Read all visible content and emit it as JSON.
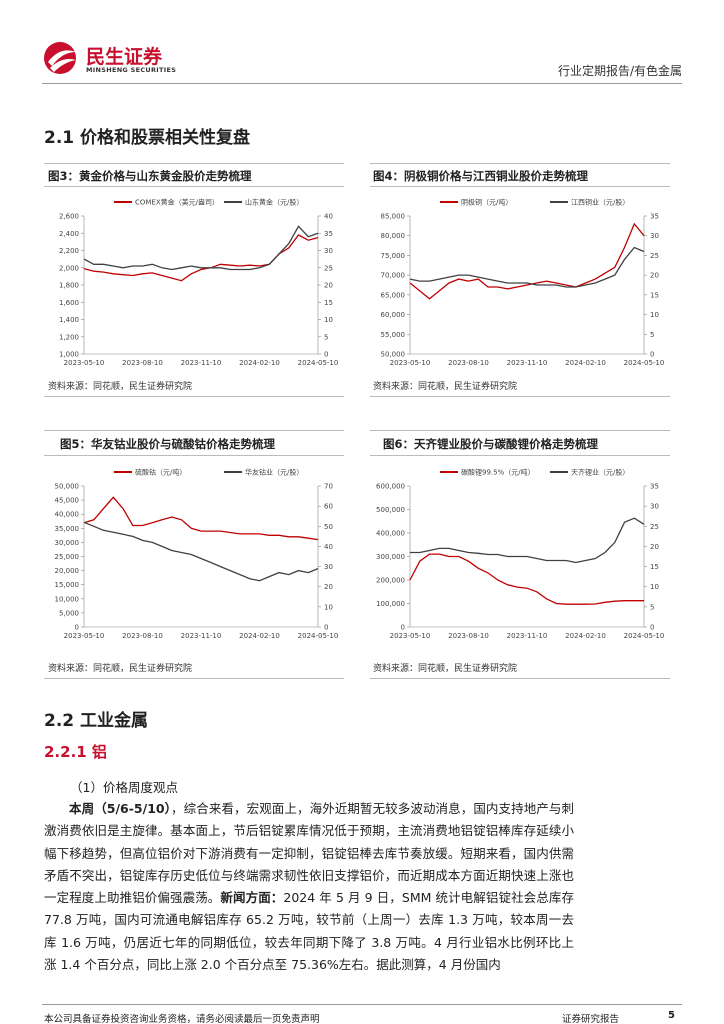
{
  "header": {
    "brand": "民生证券",
    "brand_en": "MINSHENG SECURITIES",
    "category": "行业定期报告/有色金属"
  },
  "section_2_1": "2.1 价格和股票相关性复盘",
  "chart_data": [
    {
      "type": "line",
      "title": "图3：黄金价格与山东黄金股价走势梳理",
      "source": "资料来源：同花顺，民生证券研究院",
      "categories": [
        "2023-05-10",
        null,
        null,
        null,
        null,
        null,
        "2023-08-10",
        null,
        null,
        null,
        null,
        null,
        "2023-11-10",
        null,
        null,
        null,
        null,
        null,
        "2024-02-10",
        null,
        null,
        null,
        null,
        null,
        "2024-05-10"
      ],
      "ylim": [
        1000,
        2600
      ],
      "yticks": [
        {
          "value": 1000,
          "label": "1,000"
        },
        {
          "value": 1200,
          "label": "1,200"
        },
        {
          "value": 1400,
          "label": "1,400"
        },
        {
          "value": 1600,
          "label": "1,600"
        },
        {
          "value": 1800,
          "label": "1,800"
        },
        {
          "value": 2000,
          "label": "2,000"
        },
        {
          "value": 2200,
          "label": "2,200"
        },
        {
          "value": 2400,
          "label": "2,400"
        },
        {
          "value": 2600,
          "label": "2,600"
        }
      ],
      "y2lim": [
        0,
        40
      ],
      "y2ticks": [
        0,
        5,
        10,
        15,
        20,
        25,
        30,
        35,
        40
      ],
      "series": [
        {
          "name": "COMEX黄金（美元/盎司）",
          "color": "#c00000",
          "values": [
            1990,
            1960,
            1950,
            1930,
            1920,
            1910,
            1930,
            1940,
            1910,
            1880,
            1850,
            1930,
            1980,
            2000,
            2040,
            2030,
            2020,
            2030,
            2020,
            2040,
            2160,
            2230,
            2380,
            2320,
            2350
          ]
        },
        {
          "name": "山东黄金（元/股）",
          "color": "#404040",
          "axis": "y2",
          "values": [
            27.5,
            26,
            26,
            25.5,
            25,
            25.5,
            25.5,
            26,
            25,
            24.5,
            25,
            25.5,
            25,
            25,
            25,
            24.5,
            24.5,
            24.5,
            25,
            26,
            29,
            32,
            37,
            34,
            35
          ]
        }
      ]
    },
    {
      "type": "line",
      "title": "图4：阴极铜价格与江西铜业股价走势梳理",
      "source": "资料来源：同花顺，民生证券研究院",
      "categories": [
        "2023-05-10",
        null,
        null,
        null,
        null,
        null,
        "2023-08-10",
        null,
        null,
        null,
        null,
        null,
        "2023-11-10",
        null,
        null,
        null,
        null,
        null,
        "2024-02-10",
        null,
        null,
        null,
        null,
        null,
        "2024-05-10"
      ],
      "ylim": [
        50000,
        85000
      ],
      "yticks": [
        {
          "value": 50000,
          "label": "50,000"
        },
        {
          "value": 55000,
          "label": "55,000"
        },
        {
          "value": 60000,
          "label": "60,000"
        },
        {
          "value": 65000,
          "label": "65,000"
        },
        {
          "value": 70000,
          "label": "70,000"
        },
        {
          "value": 75000,
          "label": "75,000"
        },
        {
          "value": 80000,
          "label": "80,000"
        },
        {
          "value": 85000,
          "label": "85,000"
        }
      ],
      "y2lim": [
        0,
        35
      ],
      "y2ticks": [
        0,
        5,
        10,
        15,
        20,
        25,
        30,
        35
      ],
      "series": [
        {
          "name": "阴极铜（元/吨）",
          "color": "#c00000",
          "values": [
            68000,
            66000,
            64000,
            66000,
            68000,
            69000,
            68500,
            69000,
            67000,
            67000,
            66500,
            67000,
            67500,
            68000,
            68500,
            68000,
            67500,
            67000,
            68000,
            69000,
            70500,
            72000,
            77000,
            83000,
            80000
          ]
        },
        {
          "name": "江西铜业（元/股）",
          "color": "#404040",
          "axis": "y2",
          "values": [
            19,
            18.5,
            18.5,
            19,
            19.5,
            20,
            20,
            19.5,
            19,
            18.5,
            18,
            18,
            18,
            17.5,
            17.5,
            17.5,
            17,
            17,
            17.5,
            18,
            19,
            20,
            24,
            27,
            26
          ]
        }
      ]
    },
    {
      "type": "line",
      "title": "图5：华友钴业股价与硫酸钴价格走势梳理",
      "source": "资料来源：同花顺，民生证券研究院",
      "categories": [
        "2023-05-10",
        null,
        null,
        null,
        null,
        null,
        "2023-08-10",
        null,
        null,
        null,
        null,
        null,
        "2023-11-10",
        null,
        null,
        null,
        null,
        null,
        "2024-02-10",
        null,
        null,
        null,
        null,
        null,
        "2024-05-10"
      ],
      "ylim": [
        0,
        50000
      ],
      "yticks": [
        0,
        {
          "value": 5000,
          "label": "5,000"
        },
        {
          "value": 10000,
          "label": "10,000"
        },
        {
          "value": 15000,
          "label": "15,000"
        },
        {
          "value": 20000,
          "label": "20,000"
        },
        {
          "value": 25000,
          "label": "25,000"
        },
        {
          "value": 30000,
          "label": "30,000"
        },
        {
          "value": 35000,
          "label": "35,000"
        },
        {
          "value": 40000,
          "label": "40,000"
        },
        {
          "value": 45000,
          "label": "45,000"
        },
        {
          "value": 50000,
          "label": "50,000"
        }
      ],
      "y2lim": [
        0,
        70
      ],
      "y2ticks": [
        0,
        10,
        20,
        30,
        40,
        50,
        60,
        70
      ],
      "series": [
        {
          "name": "硫酸钴（元/吨）",
          "color": "#c00000",
          "values": [
            37000,
            38000,
            42000,
            46000,
            42000,
            36000,
            36000,
            37000,
            38000,
            39000,
            38000,
            35000,
            34000,
            34000,
            34000,
            33500,
            33000,
            33000,
            33000,
            32500,
            32500,
            32000,
            32000,
            31500,
            31000
          ]
        },
        {
          "name": "华友钴业（元/股）",
          "color": "#404040",
          "axis": "y2",
          "values": [
            52,
            50,
            48,
            47,
            46,
            45,
            43,
            42,
            40,
            38,
            37,
            36,
            34,
            32,
            30,
            28,
            26,
            24,
            23,
            25,
            27,
            26,
            28,
            27,
            29
          ]
        }
      ]
    },
    {
      "type": "line",
      "title": "图6：天齐锂业股价与碳酸锂价格走势梳理",
      "source": "资料来源：同花顺，民生证券研究院",
      "categories": [
        "2023-05-10",
        null,
        null,
        null,
        null,
        null,
        "2023-08-10",
        null,
        null,
        null,
        null,
        null,
        "2023-11-10",
        null,
        null,
        null,
        null,
        null,
        "2024-02-10",
        null,
        null,
        null,
        null,
        null,
        "2024-05-10"
      ],
      "ylim": [
        0,
        600000
      ],
      "yticks": [
        0,
        {
          "value": 100000,
          "label": "100,000"
        },
        {
          "value": 200000,
          "label": "200,000"
        },
        {
          "value": 300000,
          "label": "300,000"
        },
        {
          "value": 400000,
          "label": "400,000"
        },
        {
          "value": 500000,
          "label": "500,000"
        },
        {
          "value": 600000,
          "label": "600,000"
        }
      ],
      "y2lim": [
        0,
        35
      ],
      "y2ticks": [
        0,
        5,
        10,
        15,
        20,
        25,
        30,
        35
      ],
      "series": [
        {
          "name": "碳酸锂99.5%（元/吨）",
          "color": "#c00000",
          "values": [
            200000,
            280000,
            310000,
            310000,
            300000,
            300000,
            280000,
            250000,
            230000,
            200000,
            180000,
            170000,
            165000,
            150000,
            120000,
            100000,
            97000,
            97000,
            97000,
            98000,
            105000,
            110000,
            112000,
            112000,
            112000
          ]
        },
        {
          "name": "天齐锂业（元/股）",
          "color": "#404040",
          "axis": "y2",
          "values": [
            18.5,
            18.5,
            19,
            19.5,
            19.5,
            19,
            18.5,
            18.3,
            18,
            18,
            17.5,
            17.5,
            17.5,
            17,
            16.5,
            16.5,
            16.5,
            16,
            16.5,
            17,
            18.5,
            21,
            26,
            27,
            25.5
          ]
        }
      ]
    }
  ],
  "section_2_2": "2.2 工业金属",
  "subsection": "2.2.1 铝",
  "item": "（1）价格周度观点",
  "paragraph": [
    "本周（5/6-5/10）",
    "，综合来看，宏观面上，海外近期暂无较多波动消息，国内支持地产与刺激消费依旧是主旋律。基本面上，节后铝锭累库情况低于预期，主流消费地铝锭铝棒库存延续小幅下移趋势，但高位铝价对下游消费有一定抑制，铝锭铝棒去库节奏放缓。短期来看，国内供需矛盾不突出，铝锭库存历史低位与终端需求韧性依旧支撑铝价，而近期成本方面近期快速上涨也一定程度上助推铝价偏强震荡。",
    "新闻方面：",
    "2024 年 5 月 9 日，SMM 统计电解铝锭社会总库存 77.8 万吨，国内可流通电解铝库存 65.2 万吨，较节前（上周一）去库 1.3 万吨，较本周一去库 1.6 万吨，仍居近七年的同期低位，较去年同期下降了 3.8 万吨。4 月行业铝水比例环比上涨 1.4 个百分点，同比上涨 2.0 个百分点至 75.36%左右。据此测算，4 月份国内"
  ],
  "footer": {
    "disclaimer": "本公司具备证券投资咨询业务资格，请务必阅读最后一页免责声明",
    "label": "证券研究报告",
    "page": "5"
  }
}
